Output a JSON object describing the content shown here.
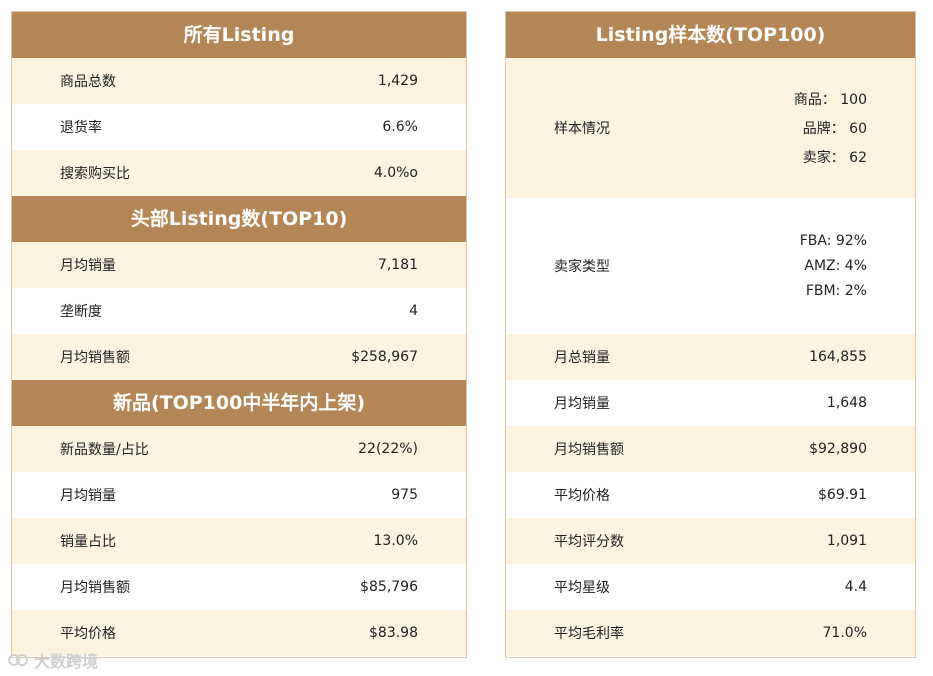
{
  "left": {
    "sections": [
      {
        "title": "所有Listing",
        "rows": [
          {
            "label": "商品总数",
            "value": "1,429"
          },
          {
            "label": "退货率",
            "value": "6.6%"
          },
          {
            "label": "搜索购买比",
            "value": "4.0%o"
          }
        ]
      },
      {
        "title": "头部Listing数(TOP10)",
        "rows": [
          {
            "label": "月均销量",
            "value": "7,181"
          },
          {
            "label": "垄断度",
            "value": "4"
          },
          {
            "label": "月均销售额",
            "value": "$258,967"
          }
        ]
      },
      {
        "title": "新品(TOP100中半年内上架)",
        "rows": [
          {
            "label": "新品数量/占比",
            "value": "22(22%)"
          },
          {
            "label": "月均销量",
            "value": "975"
          },
          {
            "label": "销量占比",
            "value": "13.0%"
          },
          {
            "label": "月均销售额",
            "value": "$85,796"
          },
          {
            "label": "平均价格",
            "value": "$83.98"
          }
        ]
      }
    ]
  },
  "right": {
    "title": "Listing样本数(TOP100)",
    "sample": {
      "label": "样本情况",
      "lines": [
        "商品：  100",
        "品牌：  60",
        "卖家：  62"
      ]
    },
    "seller_type": {
      "label": "卖家类型",
      "lines": [
        "FBA: 92%",
        "AMZ: 4%",
        "FBM: 2%"
      ]
    },
    "rows": [
      {
        "label": "月总销量",
        "value": "164,855"
      },
      {
        "label": "月均销量",
        "value": "1,648"
      },
      {
        "label": "月均销售额",
        "value": "$92,890"
      },
      {
        "label": "平均价格",
        "value": "$69.91"
      },
      {
        "label": "平均评分数",
        "value": "1,091"
      },
      {
        "label": "平均星级",
        "value": "4.4"
      },
      {
        "label": "平均毛利率",
        "value": "71.0%"
      }
    ]
  },
  "watermark": {
    "text": "大数跨境",
    "icon": "brand-logo-icon"
  },
  "colors": {
    "header": "#b58655",
    "row_alt": "#fdf3de",
    "border": "#d9c9a8"
  }
}
